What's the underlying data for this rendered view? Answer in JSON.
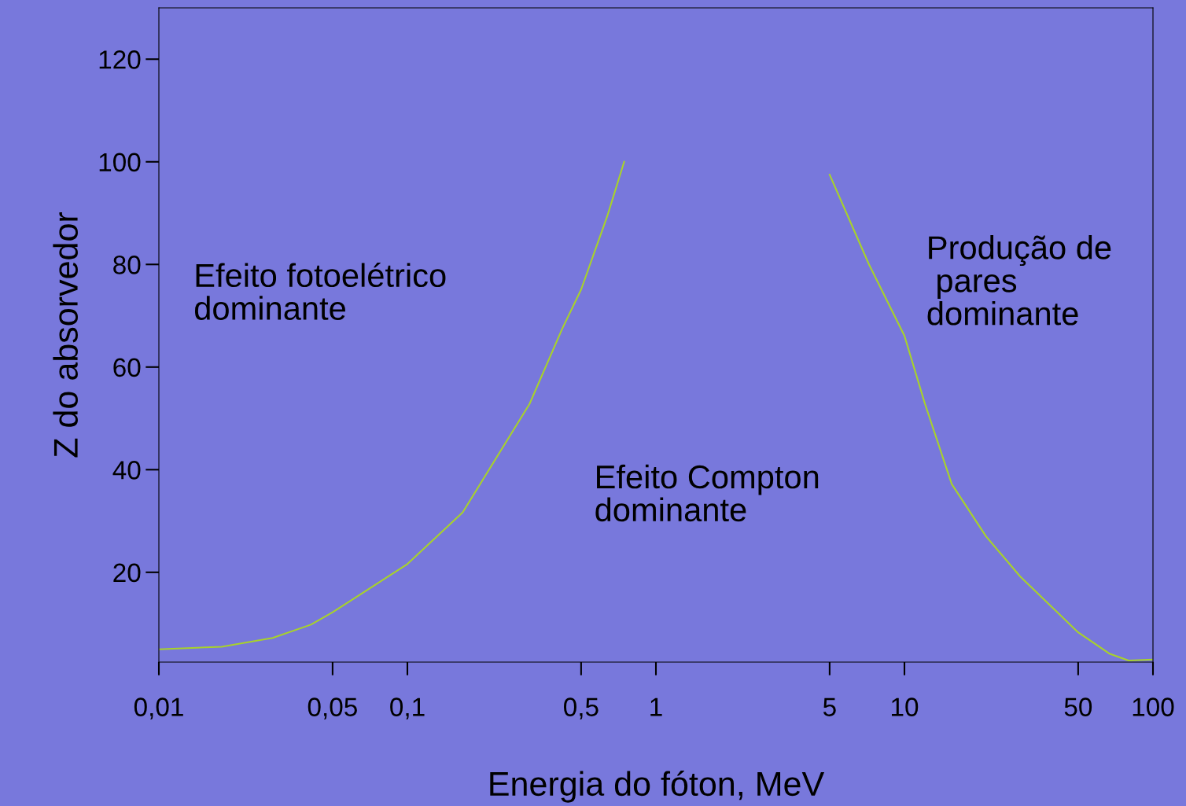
{
  "chart_data": {
    "type": "line",
    "xlabel": "Energia do fóton, MeV",
    "ylabel": "Z do absorvedor",
    "log": "x",
    "xlim": [
      0.01,
      100
    ],
    "ylim": [
      2.5,
      130
    ],
    "xticks": [
      {
        "value": 0.01,
        "label": "0,01"
      },
      {
        "value": 0.05,
        "label": "0,05"
      },
      {
        "value": 0.1,
        "label": "0,1"
      },
      {
        "value": 0.5,
        "label": "0,5"
      },
      {
        "value": 1,
        "label": "1"
      },
      {
        "value": 5,
        "label": "5"
      },
      {
        "value": 10,
        "label": "10"
      },
      {
        "value": 50,
        "label": "50"
      },
      {
        "value": 100,
        "label": "100"
      }
    ],
    "yticks": [
      20,
      40,
      60,
      80,
      100,
      120
    ],
    "grid": false,
    "marker": "none",
    "line_style": "solid",
    "series": [
      {
        "color": "#a8d22a",
        "x": [
          0.01,
          0.0179,
          0.0287,
          0.0409,
          0.05,
          0.1,
          0.167,
          0.31,
          0.42,
          0.5,
          0.637,
          0.745
        ],
        "values": [
          5.0,
          5.5,
          7.2,
          9.8,
          12.2,
          21.6,
          31.7,
          52.8,
          67.5,
          75.1,
          89.4,
          100
        ]
      },
      {
        "color": "#a8d22a",
        "x": [
          5,
          7.2,
          10,
          12.1,
          15.5,
          21.3,
          29.2,
          50,
          67.1,
          79.8,
          100
        ],
        "values": [
          97.5,
          80,
          66.1,
          52.8,
          37.2,
          27,
          19.2,
          8.3,
          4.1,
          2.8,
          3.0
        ]
      }
    ],
    "annotations": [
      "Efeito fotoelétrico\ndominante",
      "Efeito Compton\ndominante",
      "Produção de\n pares\ndominante"
    ]
  }
}
